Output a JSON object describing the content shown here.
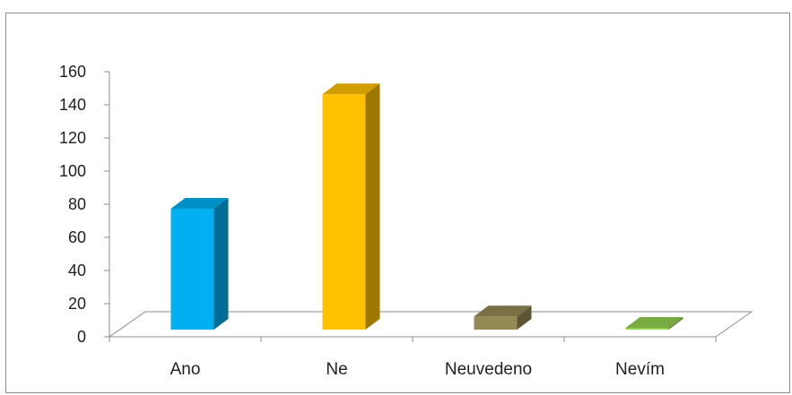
{
  "chart_data": {
    "type": "bar",
    "style": "3d-column",
    "categories": [
      "Ano",
      "Ne",
      "Neuvedeno",
      "Nevím"
    ],
    "values": [
      73,
      142,
      8,
      1
    ],
    "colors": [
      "#00b0f0",
      "#ffc000",
      "#948a54",
      "#92d050"
    ],
    "title": "",
    "xlabel": "",
    "ylabel": "",
    "ylim": [
      0,
      160
    ],
    "yticks": [
      "0",
      "20",
      "40",
      "60",
      "80",
      "100",
      "120",
      "140",
      "160"
    ],
    "grid": false,
    "legend": "none"
  }
}
